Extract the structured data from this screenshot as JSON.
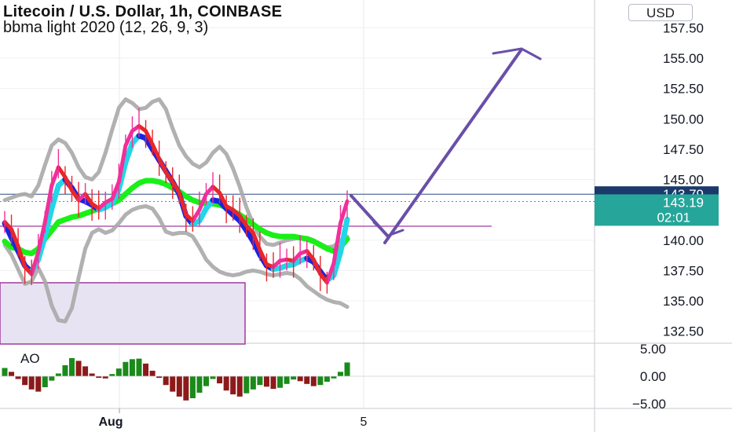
{
  "header": {
    "title": "Litecoin / U.S. Dollar, 1h, COINBASE",
    "indicator": "bbma light 2020 (12, 26, 9, 3)",
    "currency": "USD"
  },
  "price_axis": {
    "ticks": [
      "157.50",
      "155.00",
      "152.50",
      "150.00",
      "147.50",
      "145.00",
      "140.00",
      "137.50",
      "135.00",
      "132.50"
    ],
    "tick_values": [
      157.5,
      155,
      152.5,
      150,
      147.5,
      145,
      140,
      137.5,
      135,
      132.5
    ],
    "last_price_label": "143.79",
    "last_price_color": "#1b3a6b",
    "current_price_label": "143.19",
    "countdown_label": "02:01",
    "current_price_color": "#26a69a"
  },
  "oscillator": {
    "name": "AO",
    "ticks": [
      "5.00",
      "0.00",
      "−5.00"
    ],
    "tick_values": [
      5,
      0,
      -5
    ]
  },
  "time_axis": {
    "labels": [
      "Aug",
      "5"
    ]
  },
  "colors": {
    "up_candle": "#f0309a",
    "down_candle": "#e8262b",
    "ma_fast": "#1a24e0",
    "ma_fast_alt": "#22d6e8",
    "ma_slow": "#18f018",
    "bands": "#a8a8a8",
    "arrow": "#6a4fa8",
    "box_fill": "#e7e3f2",
    "box_stroke": "#a23aa0",
    "ao_up": "#1a8a1a",
    "ao_down": "#8c1a1a"
  },
  "chart_data": {
    "type": "line",
    "title": "Litecoin / U.S. Dollar, 1h, COINBASE",
    "ylim": [
      131.5,
      159
    ],
    "x_labels": [
      "Aug",
      "5"
    ],
    "series": [
      {
        "name": "price",
        "values": [
          141.5,
          140.9,
          139.5,
          137.8,
          137.2,
          139.0,
          141.5,
          144.5,
          146.0,
          145.2,
          144.1,
          143.3,
          143.8,
          143.0,
          142.6,
          143.1,
          143.4,
          144.8,
          147.8,
          149.0,
          149.4,
          149.0,
          147.9,
          146.7,
          145.6,
          144.8,
          143.9,
          142.1,
          141.6,
          142.5,
          143.8,
          144.4,
          143.9,
          142.8,
          142.5,
          142.0,
          141.2,
          140.6,
          139.2,
          138.0,
          137.8,
          138.3,
          138.4,
          138.3,
          138.9,
          139.1,
          138.4,
          137.2,
          136.5,
          138.1,
          141.4,
          143.2
        ]
      },
      {
        "name": "bbma light 2020 fast",
        "values": [
          141.4,
          140.2,
          139.1,
          137.9,
          137.4,
          138.4,
          140.3,
          142.6,
          144.5,
          145.0,
          144.3,
          143.4,
          143.2,
          142.9,
          142.5,
          142.7,
          143.0,
          144.2,
          146.4,
          148.0,
          148.6,
          148.4,
          147.5,
          146.6,
          145.7,
          144.8,
          143.8,
          142.0,
          141.3,
          141.6,
          142.6,
          143.3,
          143.2,
          142.6,
          142.1,
          141.6,
          140.8,
          139.9,
          138.8,
          137.9,
          137.6,
          137.7,
          137.9,
          138.0,
          138.3,
          138.5,
          138.2,
          137.4,
          136.7,
          137.1,
          139.0,
          141.7
        ]
      },
      {
        "name": "bbma light 2020 slow",
        "values": [
          139.9,
          139.4,
          139.3,
          139.0,
          138.9,
          139.3,
          140.1,
          140.8,
          141.5,
          141.7,
          141.9,
          142.0,
          142.2,
          142.4,
          142.6,
          142.8,
          143.0,
          143.3,
          143.8,
          144.3,
          144.7,
          144.9,
          144.9,
          144.8,
          144.6,
          144.3,
          144.0,
          143.6,
          143.3,
          143.1,
          143.0,
          143.0,
          142.9,
          142.7,
          142.4,
          142.1,
          141.7,
          141.3,
          140.9,
          140.6,
          140.4,
          140.3,
          140.3,
          140.3,
          140.2,
          140.1,
          139.9,
          139.6,
          139.3,
          139.1,
          139.4,
          140.1
        ]
      },
      {
        "name": "upper band",
        "values": [
          143.3,
          143.5,
          143.7,
          143.8,
          143.6,
          144.5,
          146.2,
          147.8,
          148.3,
          148.0,
          147.2,
          146.0,
          145.2,
          145.0,
          145.6,
          147.2,
          149.1,
          150.9,
          151.6,
          151.3,
          150.8,
          150.9,
          151.4,
          151.6,
          150.8,
          149.2,
          147.8,
          146.9,
          146.3,
          146.0,
          146.4,
          147.2,
          147.7,
          147.1,
          145.9,
          144.4,
          142.7,
          141.3,
          140.3,
          139.7,
          139.6,
          139.8,
          140.0,
          140.1,
          140.2,
          140.2,
          140.0,
          139.7,
          139.4,
          139.5,
          140.0,
          140.3
        ]
      },
      {
        "name": "lower band",
        "values": [
          139.6,
          138.8,
          137.6,
          136.4,
          136.6,
          137.7,
          136.6,
          134.6,
          133.4,
          133.3,
          134.4,
          136.9,
          139.3,
          140.6,
          140.9,
          140.6,
          140.8,
          141.4,
          142.1,
          142.5,
          142.7,
          142.8,
          142.6,
          141.8,
          140.7,
          140.5,
          140.6,
          140.6,
          140.3,
          139.4,
          138.4,
          137.8,
          137.4,
          137.2,
          137.1,
          137.2,
          137.4,
          137.5,
          137.4,
          137.2,
          137.1,
          137.2,
          137.3,
          137.2,
          136.8,
          136.2,
          135.8,
          135.4,
          135.1,
          134.9,
          134.8,
          134.5
        ]
      },
      {
        "name": "AO",
        "values": [
          1.5,
          0.8,
          -0.5,
          -1.6,
          -2.4,
          -2.8,
          -2.0,
          -0.8,
          0.5,
          2.0,
          3.3,
          2.8,
          1.8,
          0.5,
          -0.3,
          -0.4,
          0.4,
          1.4,
          2.6,
          3.1,
          3.2,
          2.3,
          1.0,
          -0.3,
          -1.6,
          -2.8,
          -3.7,
          -4.4,
          -4.0,
          -3.0,
          -1.8,
          -0.5,
          -1.3,
          -2.6,
          -3.3,
          -3.7,
          -3.1,
          -2.4,
          -1.6,
          -1.9,
          -2.3,
          -2.1,
          -1.4,
          -0.6,
          -0.9,
          -1.4,
          -1.8,
          -1.6,
          -1.0,
          -0.4,
          0.8,
          2.5
        ]
      }
    ]
  }
}
